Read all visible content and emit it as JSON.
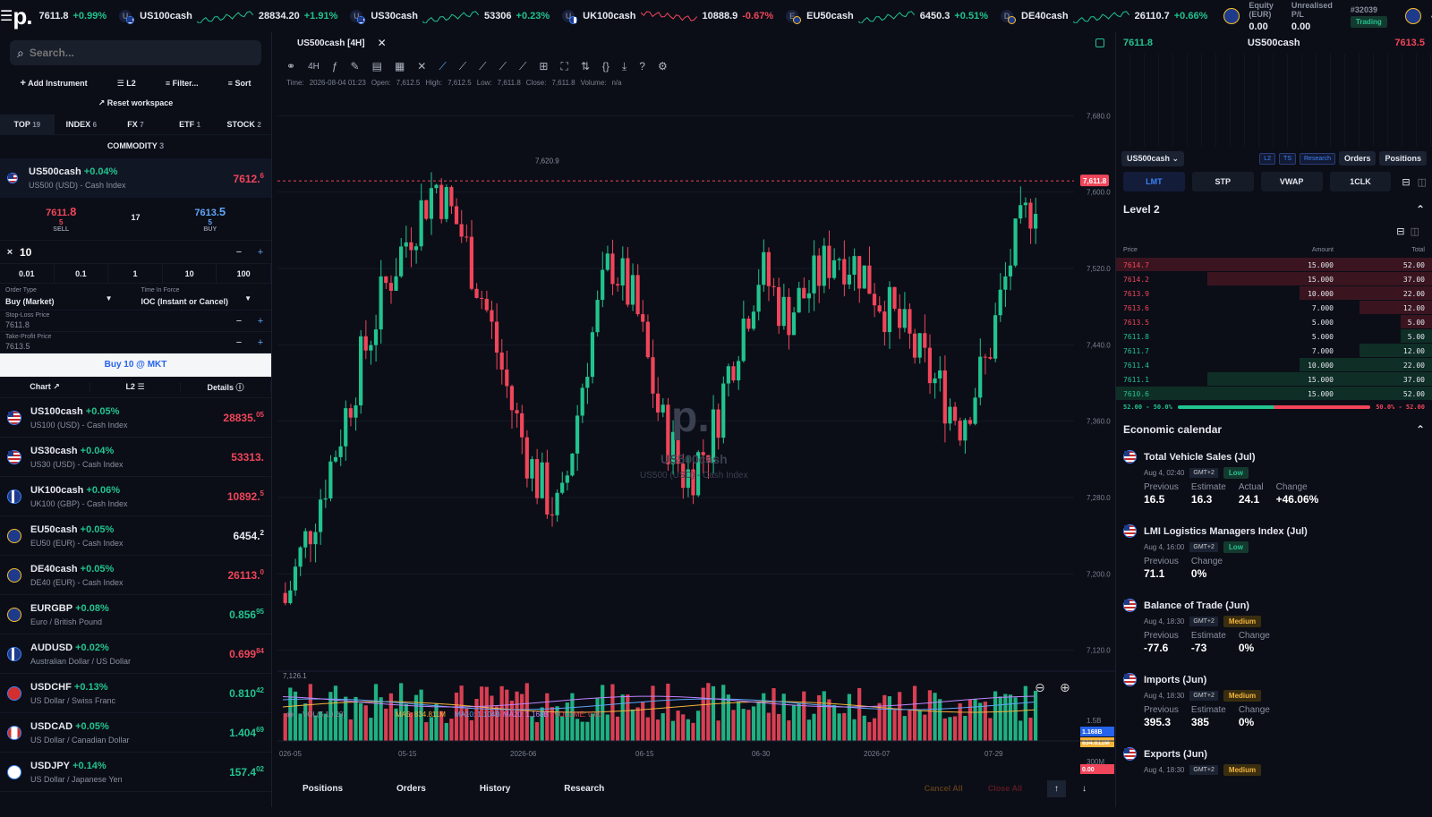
{
  "topbar": {
    "logo": "p.",
    "first_price": "7611.8",
    "first_change": "+0.99%",
    "tickers": [
      {
        "symbol": "US100cash",
        "price": "28834.20",
        "change": "+1.91%",
        "dir": "up",
        "flag": "us",
        "letter": "U"
      },
      {
        "symbol": "US30cash",
        "price": "53306",
        "change": "+0.23%",
        "dir": "up",
        "flag": "us",
        "letter": "U"
      },
      {
        "symbol": "UK100cash",
        "price": "10888.9",
        "change": "-0.67%",
        "dir": "dn",
        "flag": "gb",
        "letter": "U"
      },
      {
        "symbol": "EU50cash",
        "price": "6450.3",
        "change": "+0.51%",
        "dir": "up",
        "flag": "eu",
        "letter": "E"
      },
      {
        "symbol": "DE40cash",
        "price": "26110.7",
        "change": "+0.66%",
        "dir": "up",
        "flag": "eu",
        "letter": "D"
      }
    ],
    "equity_label": "Equity (EUR)",
    "equity_value": "0.00",
    "pl_label": "Unrealised P/L",
    "pl_value": "0.00",
    "account_id": "#32039",
    "account_status": "Trading"
  },
  "left": {
    "search_placeholder": "Search...",
    "add_instrument": "Add Instrument",
    "l2": "L2",
    "filter": "Filter...",
    "sort": "Sort",
    "reset": "Reset workspace",
    "cat_tabs": [
      {
        "label": "TOP",
        "count": "19"
      },
      {
        "label": "INDEX",
        "count": "6"
      },
      {
        "label": "FX",
        "count": "7"
      },
      {
        "label": "ETF",
        "count": "1"
      },
      {
        "label": "STOCK",
        "count": "2"
      }
    ],
    "cat_commodity": {
      "label": "COMMODITY",
      "count": "3"
    },
    "selected": {
      "symbol": "US500cash",
      "change": "+0.04%",
      "desc": "US500 (USD) - Cash Index",
      "price": "7612.",
      "price_sup": "6",
      "sell_price": "7611.",
      "sell_sup": "8",
      "sell_qty": "5",
      "sell_label": "SELL",
      "spread": "17",
      "buy_price": "7613.",
      "buy_sup": "5",
      "buy_qty": "5",
      "buy_label": "BUY"
    },
    "qty": "10",
    "qty_presets": [
      "0.01",
      "0.1",
      "1",
      "10",
      "100"
    ],
    "order_type_label": "Order Type",
    "order_type": "Buy (Market)",
    "tif_label": "Time In Force",
    "tif": "IOC (Instant or Cancel)",
    "sl_label": "Stop-Loss Price",
    "sl_value": "7611.8",
    "tp_label": "Take-Profit Price",
    "tp_value": "7613.5",
    "submit": "Buy 10 @ MKT",
    "subtabs": [
      "Chart",
      "L2",
      "Details"
    ],
    "watchlist": [
      {
        "symbol": "US100cash",
        "change": "+0.05%",
        "desc": "US100 (USD) - Cash Index",
        "price": "28835.",
        "sup": "05",
        "dir": "dn",
        "flag": "us",
        "letter": "U"
      },
      {
        "symbol": "US30cash",
        "change": "+0.04%",
        "desc": "US30 (USD) - Cash Index",
        "price": "53313.",
        "sup": "",
        "dir": "dn",
        "flag": "us",
        "letter": "U"
      },
      {
        "symbol": "UK100cash",
        "change": "+0.06%",
        "desc": "UK100 (GBP) - Cash Index",
        "price": "10892.",
        "sup": "5",
        "dir": "dn",
        "flag": "gb",
        "letter": "U"
      },
      {
        "symbol": "EU50cash",
        "change": "+0.05%",
        "desc": "EU50 (EUR) - Cash Index",
        "price": "6454.",
        "sup": "2",
        "dir": "wh",
        "flag": "eu",
        "letter": "E"
      },
      {
        "symbol": "DE40cash",
        "change": "+0.05%",
        "desc": "DE40 (EUR) - Cash Index",
        "price": "26113.",
        "sup": "0",
        "dir": "dn",
        "flag": "eu",
        "letter": "D"
      },
      {
        "symbol": "EURGBP",
        "change": "+0.08%",
        "desc": "Euro / British Pound",
        "price": "0.856",
        "sup": "95",
        "dir": "up",
        "flag": "eu",
        "letter": ""
      },
      {
        "symbol": "AUDUSD",
        "change": "+0.02%",
        "desc": "Australian Dollar / US Dollar",
        "price": "0.699",
        "sup": "84",
        "dir": "dn",
        "flag": "gb",
        "letter": ""
      },
      {
        "symbol": "USDCHF",
        "change": "+0.13%",
        "desc": "US Dollar / Swiss Franc",
        "price": "0.810",
        "sup": "42",
        "dir": "up",
        "flag": "ch",
        "letter": ""
      },
      {
        "symbol": "USDCAD",
        "change": "+0.05%",
        "desc": "US Dollar / Canadian Dollar",
        "price": "1.404",
        "sup": "69",
        "dir": "up",
        "flag": "ca",
        "letter": ""
      },
      {
        "symbol": "USDJPY",
        "change": "+0.14%",
        "desc": "US Dollar / Japanese Yen",
        "price": "157.4",
        "sup": "02",
        "dir": "up",
        "flag": "jp",
        "letter": ""
      }
    ]
  },
  "chart": {
    "tab_label": "US500cash [4H]",
    "timeframe": "4H",
    "ohlc": {
      "time_label": "Time:",
      "time": "2026-08-04 01:23",
      "open_label": "Open:",
      "open": "7,612.5",
      "high_label": "High:",
      "high": "7,612.5",
      "low_label": "Low:",
      "low": "7,611.8",
      "close_label": "Close:",
      "close": "7,611.8",
      "volume_label": "Volume:",
      "volume": "n/a"
    },
    "watermark_logo": "p.",
    "watermark_symbol": "US500cash",
    "watermark_desc": "US500 (USD) - Cash Index",
    "last_price_tag": "7,611.8",
    "high_marker": "7,620.9",
    "low_marker": "7,126.1",
    "price_ticks": [
      "7,680.0",
      "7,600.0",
      "7,520.0",
      "7,440.0",
      "7,360.0",
      "7,280.0",
      "7,200.0",
      "7,120.0"
    ],
    "date_ticks": [
      "026-05",
      "05-15",
      "2026-06",
      "06-15",
      "06-30",
      "2026-07",
      "07-29"
    ],
    "vol_legend": {
      "vol": "VOL(5,10,20)",
      "ma5": "MA5: 834.811M",
      "ma10": "MA10: 1.104B",
      "ma20": "MA20: 1.168B",
      "volume": "VOLUME: 0.00"
    },
    "vol_ticks": [
      "1.5B",
      "300M"
    ],
    "vol_tags": [
      "1.168B",
      "834.811M",
      "0.00"
    ],
    "bottom_tabs": [
      "Positions",
      "Orders",
      "History",
      "Research"
    ],
    "cancel_all": "Cancel All",
    "close_all": "Close All"
  },
  "chart_data": {
    "type": "candlestick",
    "symbol": "US500cash",
    "timeframe": "4H",
    "y_range": [
      7100,
      7700
    ],
    "last_price": 7611.8,
    "period_high": 7620.9,
    "period_low": 7126.1,
    "x_ticks": [
      "026-05",
      "05-15",
      "2026-06",
      "06-15",
      "06-30",
      "2026-07",
      "07-29"
    ],
    "y_ticks": [
      7680,
      7600,
      7520,
      7440,
      7360,
      7280,
      7200,
      7120
    ],
    "volume_ticks": [
      "1.5B",
      "300M"
    ]
  },
  "right": {
    "bid": "7611.8",
    "symbol": "US500cash",
    "ask": "7613.5",
    "symbol_select": "US500cash",
    "chips": [
      "L2",
      "TS",
      "Research"
    ],
    "orders": "Orders",
    "positions": "Positions",
    "order_modes": [
      "LMT",
      "STP",
      "VWAP",
      "1CLK"
    ],
    "level2_title": "Level 2",
    "l2_headers": [
      "Price",
      "Amount",
      "Total"
    ],
    "asks": [
      {
        "price": "7614.7",
        "amount": "15.000",
        "total": "52.00",
        "depth": 1.0
      },
      {
        "price": "7614.2",
        "amount": "15.000",
        "total": "37.00",
        "depth": 0.71
      },
      {
        "price": "7613.9",
        "amount": "10.000",
        "total": "22.00",
        "depth": 0.42
      },
      {
        "price": "7613.6",
        "amount": "7.000",
        "total": "12.00",
        "depth": 0.23
      },
      {
        "price": "7613.5",
        "amount": "5.000",
        "total": "5.00",
        "depth": 0.1
      }
    ],
    "bids": [
      {
        "price": "7611.8",
        "amount": "5.000",
        "total": "5.00",
        "depth": 0.1
      },
      {
        "price": "7611.7",
        "amount": "7.000",
        "total": "12.00",
        "depth": 0.23
      },
      {
        "price": "7611.4",
        "amount": "10.000",
        "total": "22.00",
        "depth": 0.42
      },
      {
        "price": "7611.1",
        "amount": "15.000",
        "total": "37.00",
        "depth": 0.71
      },
      {
        "price": "7610.6",
        "amount": "15.000",
        "total": "52.00",
        "depth": 1.0
      }
    ],
    "bid_pct": "52.00 - 50.0%",
    "ask_pct": "50.0% - 52.00",
    "econ_title": "Economic calendar",
    "events": [
      {
        "title": "Total Vehicle Sales (Jul)",
        "time": "Aug 4, 02:40",
        "tz": "GMT+2",
        "impact": "Low",
        "cls": "low",
        "vals": [
          {
            "k": "Previous",
            "v": "16.5"
          },
          {
            "k": "Estimate",
            "v": "16.3"
          },
          {
            "k": "Actual",
            "v": "24.1"
          },
          {
            "k": "Change",
            "v": "+46.06%"
          }
        ]
      },
      {
        "title": "LMI Logistics Managers Index (Jul)",
        "time": "Aug 4, 16:00",
        "tz": "GMT+2",
        "impact": "Low",
        "cls": "low",
        "vals": [
          {
            "k": "Previous",
            "v": "71.1"
          },
          {
            "k": "Change",
            "v": "0%"
          }
        ]
      },
      {
        "title": "Balance of Trade (Jun)",
        "time": "Aug 4, 18:30",
        "tz": "GMT+2",
        "impact": "Medium",
        "cls": "med",
        "vals": [
          {
            "k": "Previous",
            "v": "-77.6"
          },
          {
            "k": "Estimate",
            "v": "-73"
          },
          {
            "k": "Change",
            "v": "0%"
          }
        ]
      },
      {
        "title": "Imports (Jun)",
        "time": "Aug 4, 18:30",
        "tz": "GMT+2",
        "impact": "Medium",
        "cls": "med",
        "vals": [
          {
            "k": "Previous",
            "v": "395.3"
          },
          {
            "k": "Estimate",
            "v": "385"
          },
          {
            "k": "Change",
            "v": "0%"
          }
        ]
      },
      {
        "title": "Exports (Jun)",
        "time": "Aug 4, 18:30",
        "tz": "GMT+2",
        "impact": "Medium",
        "cls": "med",
        "vals": []
      }
    ]
  }
}
